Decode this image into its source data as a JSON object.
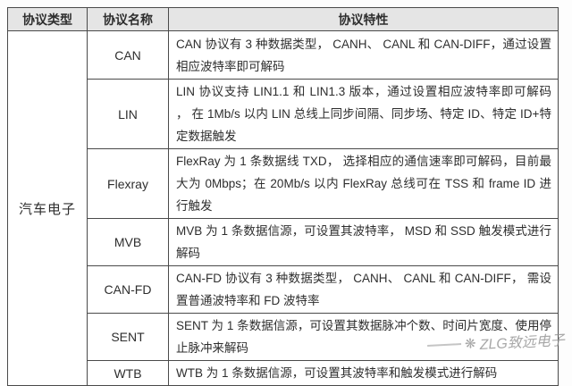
{
  "table": {
    "headers": [
      "协议类型",
      "协议名称",
      "协议特性"
    ],
    "category": "汽车电子",
    "rows": [
      {
        "name": "CAN",
        "feature": "CAN 协议有 3 种数据类型， CANH、 CANL 和 CAN-DIFF，通过设置相应波特率即可解码"
      },
      {
        "name": "LIN",
        "feature": "LIN 协议支持 LIN1.1 和 LIN1.3 版本，通过设置相应波特率即可解码 ， 在 1Mb/s 以内 LIN 总线上同步间隔、同步场、特定 ID、特定 ID+特定数据触发"
      },
      {
        "name": "Flexray",
        "feature": "FlexRay 为 1 条数据线 TXD， 选择相应的通信速率即可解码，目前最大为 0Mbps；在 20Mb/s 以内 FlexRay 总线可在 TSS 和 frame ID 进行触发"
      },
      {
        "name": "MVB",
        "feature": "MVB 为 1 条数据信源，可设置其波特率， MSD 和 SSD 触发模式进行解码"
      },
      {
        "name": "CAN-FD",
        "feature": "CAN-FD 协议有 3 种数据类型， CANH、 CANL 和 CAN-DIFF， 需设置普通波特率和 FD 波特率"
      },
      {
        "name": "SENT",
        "feature": "SENT 为 1 条数据信源，可设置其数据脉冲个数、时间片宽度、使用停止脉冲来解码"
      },
      {
        "name": "WTB",
        "feature": "WTB 为 1 条数据信源，可设置其波特率和触发模式进行解码"
      }
    ]
  },
  "watermark": {
    "logo": "❋",
    "text": "ZLG致远电子"
  },
  "colors": {
    "header_bg": "#e5e5e5",
    "border": "#4a4a4a",
    "text": "#2e2e2e",
    "watermark": "#919191"
  }
}
